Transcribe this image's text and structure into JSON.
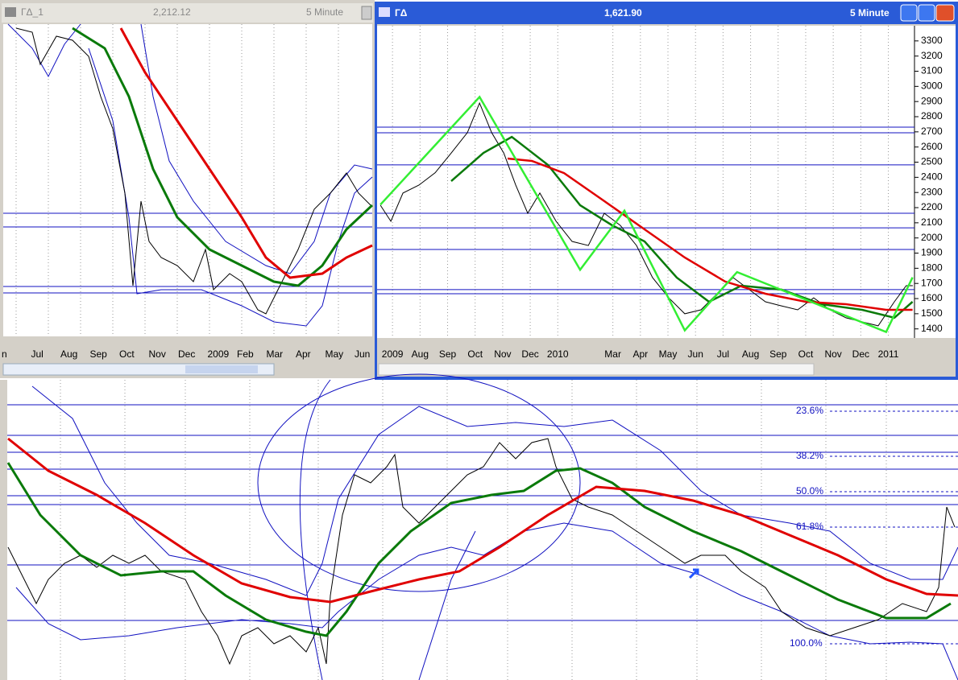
{
  "left_window": {
    "title": "ГΔ_1",
    "value": "2,212.12",
    "interval": "5 Minute",
    "x_labels": [
      "n",
      "Jul",
      "Aug",
      "Sep",
      "Oct",
      "Nov",
      "Dec",
      "2009",
      "Feb",
      "Mar",
      "Apr",
      "May",
      "Jun"
    ]
  },
  "right_window": {
    "title": "ГΔ",
    "value": "1,621.90",
    "interval": "5 Minute"
  },
  "chart_data": {
    "type": "line",
    "xlim": [
      -0.56,
      18.95
    ],
    "ylim": [
      1340,
      3400
    ],
    "xticks": [
      {
        "value": 0,
        "label": "2009"
      },
      {
        "value": 1,
        "label": "Aug"
      },
      {
        "value": 2,
        "label": "Sep"
      },
      {
        "value": 3,
        "label": "Oct"
      },
      {
        "value": 4,
        "label": "Nov"
      },
      {
        "value": 5,
        "label": "Dec"
      },
      {
        "value": 6,
        "label": "2010"
      },
      {
        "value": 8,
        "label": "Mar"
      },
      {
        "value": 9,
        "label": "Apr"
      },
      {
        "value": 10,
        "label": "May"
      },
      {
        "value": 11,
        "label": "Jun"
      },
      {
        "value": 12,
        "label": "Jul"
      },
      {
        "value": 13,
        "label": "Aug"
      },
      {
        "value": 14,
        "label": "Sep"
      },
      {
        "value": 15,
        "label": "Oct"
      },
      {
        "value": 16,
        "label": "Nov"
      },
      {
        "value": 17,
        "label": "Dec"
      },
      {
        "value": 18,
        "label": "2011"
      }
    ],
    "yticks": [
      1400,
      1500,
      1600,
      1700,
      1800,
      1900,
      2000,
      2100,
      2200,
      2300,
      2400,
      2500,
      2600,
      2700,
      2800,
      2900,
      3000,
      3100,
      3200,
      3300
    ],
    "grid": true,
    "hlines": [
      2731,
      2694,
      2482,
      2163,
      2067,
      1924,
      1659,
      1632
    ],
    "hline_color": "#1010c0",
    "series": [
      {
        "color": "#000000",
        "x": [
          -0.44,
          -0.06,
          0.38,
          0.96,
          1.55,
          2.13,
          2.72,
          3.16,
          3.6,
          4.04,
          4.47,
          4.91,
          5.35,
          5.94,
          6.52,
          7.11,
          7.69,
          8.27,
          8.86,
          9.44,
          10.03,
          10.61,
          11.2,
          11.78,
          12.37,
          12.95,
          13.54,
          14.12,
          14.71,
          15.29,
          15.88,
          16.46,
          17.05,
          17.63,
          18.22,
          18.65,
          18.89
        ],
        "values": [
          2216,
          2110,
          2296,
          2349,
          2430,
          2560,
          2695,
          2890,
          2695,
          2560,
          2350,
          2163,
          2296,
          2110,
          1977,
          1950,
          2163,
          2083,
          1950,
          1738,
          1605,
          1500,
          1526,
          1632,
          1738,
          1659,
          1579,
          1552,
          1526,
          1605,
          1526,
          1473,
          1446,
          1420,
          1579,
          1685,
          1685
        ]
      },
      {
        "color": "#0a7a0a",
        "x": [
          2.13,
          3.3,
          4.33,
          5.64,
          6.81,
          7.98,
          9.15,
          10.32,
          11.49,
          12.66,
          14.12,
          15.58,
          17.05,
          18.22,
          18.88
        ],
        "values": [
          2375,
          2561,
          2667,
          2482,
          2216,
          2083,
          1977,
          1738,
          1579,
          1685,
          1659,
          1563,
          1526,
          1473,
          1579
        ]
      },
      {
        "color": "#e00000",
        "x": [
          4.18,
          5.06,
          6.23,
          7.69,
          9.15,
          10.61,
          12.08,
          13.54,
          15.0,
          16.46,
          17.92,
          18.88
        ],
        "values": [
          2524,
          2508,
          2428,
          2243,
          2057,
          1871,
          1712,
          1632,
          1579,
          1563,
          1526,
          1526
        ]
      },
      {
        "color": "#33ee33",
        "x": [
          -0.44,
          3.16,
          6.81,
          8.42,
          10.61,
          12.51,
          17.92,
          18.88
        ],
        "values": [
          2220,
          2930,
          1790,
          2180,
          1390,
          1775,
          1380,
          1740
        ]
      }
    ]
  },
  "bottom_pane": {
    "fib_labels": [
      "23.6%",
      "38.2%",
      "50.0%",
      "61.8%",
      "100.0%"
    ]
  }
}
